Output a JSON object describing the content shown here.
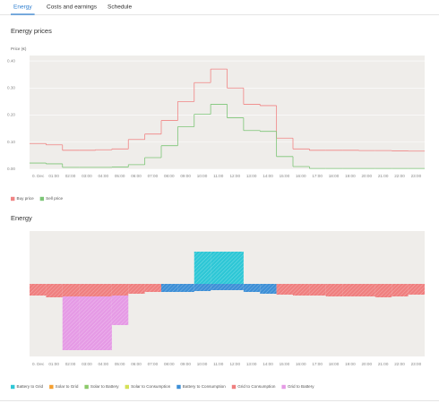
{
  "tabs": [
    "Energy",
    "Costs and earnings",
    "Schedule"
  ],
  "active_tab": 0,
  "chart_data": [
    {
      "type": "line",
      "title": "Energy prices",
      "y_label": "Price (€)",
      "categories": [
        "0. Dec",
        "01:00",
        "02:00",
        "03:00",
        "04:00",
        "05:00",
        "06:00",
        "07:00",
        "08:00",
        "09:00",
        "10:00",
        "11:00",
        "12:00",
        "13:00",
        "14:00",
        "15:00",
        "16:00",
        "17:00",
        "18:00",
        "19:00",
        "20:00",
        "21:00",
        "22:00",
        "23:00"
      ],
      "series": [
        {
          "name": "Buy price",
          "color": "#f08484",
          "values": [
            0.095,
            0.09,
            0.07,
            0.07,
            0.072,
            0.075,
            0.11,
            0.13,
            0.18,
            0.25,
            0.32,
            0.37,
            0.3,
            0.24,
            0.235,
            0.115,
            0.075,
            0.07,
            0.07,
            0.07,
            0.069,
            0.069,
            0.068,
            0.067
          ]
        },
        {
          "name": "Sell price",
          "color": "#7cc576",
          "values": [
            0.023,
            0.02,
            0.007,
            0.007,
            0.007,
            0.008,
            0.017,
            0.043,
            0.087,
            0.157,
            0.203,
            0.24,
            0.19,
            0.143,
            0.14,
            0.047,
            0.01,
            0.003,
            0.003,
            0.003,
            0.003,
            0.003,
            0.003,
            0.003
          ]
        }
      ],
      "ylim": [
        0,
        0.42
      ],
      "yticks": [
        {
          "value": 0,
          "label": "0.00"
        },
        {
          "value": 0.1,
          "label": "0.10"
        },
        {
          "value": 0.2,
          "label": "0.20"
        },
        {
          "value": 0.3,
          "label": "0.30"
        },
        {
          "value": 0.4,
          "label": "0.40"
        }
      ],
      "grid": true,
      "legend": "bottom-left"
    },
    {
      "type": "bar",
      "title": "Energy",
      "stacked": true,
      "categories": [
        "0. Dec",
        "01:00",
        "02:00",
        "03:00",
        "04:00",
        "05:00",
        "06:00",
        "07:00",
        "08:00",
        "09:00",
        "10:00",
        "11:00",
        "12:00",
        "13:00",
        "14:00",
        "15:00",
        "16:00",
        "17:00",
        "18:00",
        "19:00",
        "20:00",
        "21:00",
        "22:00",
        "23:00"
      ],
      "series": [
        {
          "name": "Battery to Grid",
          "color": "#2ec7d6",
          "values": [
            0,
            0,
            0,
            0,
            0,
            0,
            0,
            0,
            0,
            0,
            3.6,
            3.6,
            3.6,
            0,
            0,
            0,
            0,
            0,
            0,
            0,
            0,
            0,
            0,
            0
          ]
        },
        {
          "name": "Solar to Grid",
          "color": "#f5a030",
          "values": [
            0,
            0,
            0,
            0,
            0,
            0,
            0,
            0,
            0,
            0,
            0,
            0,
            0,
            0,
            0,
            0,
            0,
            0,
            0,
            0,
            0,
            0,
            0,
            0
          ]
        },
        {
          "name": "Solar to Battery",
          "color": "#8cc96a",
          "values": [
            0,
            0,
            0,
            0,
            0,
            0,
            0,
            0,
            0,
            0,
            0,
            0,
            0,
            0,
            0,
            0,
            0,
            0,
            0,
            0,
            0,
            0,
            0,
            0
          ]
        },
        {
          "name": "Solar to Consumption",
          "color": "#d4e157",
          "values": [
            0,
            0,
            0,
            0,
            0,
            0,
            0,
            0,
            0,
            0,
            0,
            0,
            0,
            0,
            0,
            0,
            0,
            0,
            0,
            0,
            0,
            0,
            0,
            0
          ]
        },
        {
          "name": "Battery to Consumption",
          "color": "#3d8fd6",
          "values": [
            0,
            0,
            0,
            0,
            0,
            0,
            0,
            0,
            -0.9,
            -0.9,
            -0.8,
            -0.7,
            -0.7,
            -0.9,
            -1.1,
            0,
            0,
            0,
            0,
            0,
            0,
            0,
            0,
            0
          ]
        },
        {
          "name": "Grid to Consumption",
          "color": "#ef7f7f",
          "values": [
            -1.3,
            -1.5,
            -1.4,
            -1.4,
            -1.4,
            -1.3,
            -1.1,
            -0.9,
            0,
            0,
            0,
            0,
            0,
            0,
            0,
            -1.2,
            -1.3,
            -1.3,
            -1.4,
            -1.4,
            -1.4,
            -1.5,
            -1.4,
            -1.2
          ]
        },
        {
          "name": "Grid to Battery",
          "color": "#e59ae5",
          "values": [
            0,
            0,
            -6.0,
            -6.0,
            -6.0,
            -3.3,
            0,
            0,
            0,
            0,
            0,
            0,
            0,
            0,
            0,
            0,
            0,
            0,
            0,
            0,
            0,
            0,
            0,
            0
          ]
        }
      ],
      "ylim": [
        -8.1,
        5.9
      ],
      "grid": false,
      "legend": "bottom-left"
    }
  ]
}
